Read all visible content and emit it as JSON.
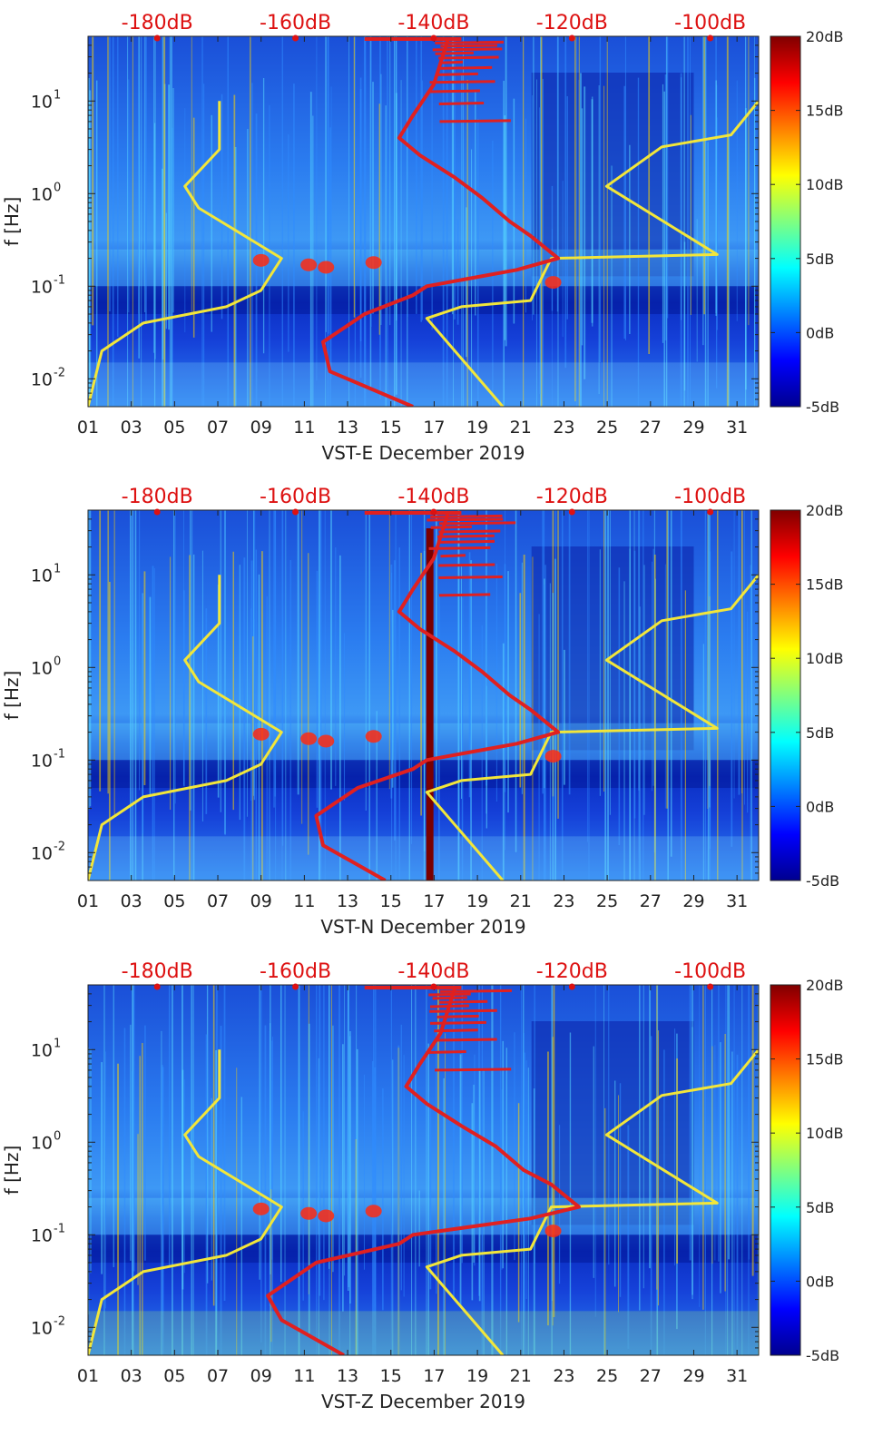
{
  "figure": {
    "description_free": true
  },
  "colors": {
    "spectrogram_low": "#00008f",
    "spectrogram_mid": "#1f7fff",
    "nlnm_nhnm_curve": "#f2e63a",
    "psd_curve": "#e02020",
    "top_axis_text": "#dd1111",
    "event_bar": "#7a0000"
  },
  "chart_data": [
    {
      "type": "heatmap",
      "panel": "VST-E",
      "xlabel": "VST-E December 2019",
      "ylabel": "f [Hz]",
      "x_ticks": [
        "01",
        "03",
        "05",
        "07",
        "09",
        "11",
        "13",
        "15",
        "17",
        "19",
        "21",
        "23",
        "25",
        "27",
        "29",
        "31"
      ],
      "x_range_days": [
        1,
        32
      ],
      "y_scale": "log",
      "y_range_hz": [
        0.005,
        50
      ],
      "y_ticks": [
        {
          "value": 0.01,
          "base": "10",
          "exp": "-2"
        },
        {
          "value": 0.1,
          "base": "10",
          "exp": "-1"
        },
        {
          "value": 1,
          "base": "10",
          "exp": "0"
        },
        {
          "value": 10,
          "base": "10",
          "exp": "1"
        }
      ],
      "top_axis_ticks": [
        "-180dB",
        "-160dB",
        "-140dB",
        "-120dB",
        "-100dB"
      ],
      "top_axis_range_db": [
        -190,
        -93
      ],
      "colorbar_ticks": [
        "20dB",
        "15dB",
        "10dB",
        "5dB",
        "0dB",
        "-5dB"
      ],
      "colorbar_range_db": [
        -5,
        20
      ],
      "event_bar_day": null,
      "curves": [
        {
          "name": "noise-model-low",
          "color": "yellow",
          "points": [
            [
              -190,
              0.005
            ],
            [
              -189,
              0.01
            ],
            [
              -188,
              0.02
            ],
            [
              -182,
              0.04
            ],
            [
              -170,
              0.06
            ],
            [
              -165,
              0.09
            ],
            [
              -162,
              0.2
            ],
            [
              -174,
              0.7
            ],
            [
              -176,
              1.2
            ],
            [
              -171,
              3
            ],
            [
              -171,
              10
            ]
          ]
        },
        {
          "name": "noise-model-high",
          "color": "yellow",
          "points": [
            [
              -130,
              0.005
            ],
            [
              -141,
              0.045
            ],
            [
              -136,
              0.06
            ],
            [
              -126,
              0.07
            ],
            [
              -123,
              0.2
            ],
            [
              -99,
              0.22
            ],
            [
              -115,
              1.2
            ],
            [
              -107,
              3.2
            ],
            [
              -97,
              4.3
            ],
            [
              -93,
              10
            ]
          ]
        },
        {
          "name": "median-psd",
          "color": "red",
          "points": [
            [
              -143,
              0.005
            ],
            [
              -155,
              0.012
            ],
            [
              -156,
              0.025
            ],
            [
              -150,
              0.05
            ],
            [
              -143,
              0.08
            ],
            [
              -141,
              0.1
            ],
            [
              -128,
              0.15
            ],
            [
              -122,
              0.2
            ],
            [
              -126,
              0.35
            ],
            [
              -129,
              0.5
            ],
            [
              -133,
              0.9
            ],
            [
              -137,
              1.5
            ],
            [
              -142,
              2.6
            ],
            [
              -145,
              4
            ],
            [
              -143,
              7
            ],
            [
              -140,
              15
            ],
            [
              -138,
              45
            ]
          ]
        }
      ]
    },
    {
      "type": "heatmap",
      "panel": "VST-N",
      "xlabel": "VST-N December 2019",
      "ylabel": "f [Hz]",
      "x_ticks": [
        "01",
        "03",
        "05",
        "07",
        "09",
        "11",
        "13",
        "15",
        "17",
        "19",
        "21",
        "23",
        "25",
        "27",
        "29",
        "31"
      ],
      "x_range_days": [
        1,
        32
      ],
      "y_scale": "log",
      "y_range_hz": [
        0.005,
        50
      ],
      "y_ticks": [
        {
          "value": 0.01,
          "base": "10",
          "exp": "-2"
        },
        {
          "value": 0.1,
          "base": "10",
          "exp": "-1"
        },
        {
          "value": 1,
          "base": "10",
          "exp": "0"
        },
        {
          "value": 10,
          "base": "10",
          "exp": "1"
        }
      ],
      "top_axis_ticks": [
        "-180dB",
        "-160dB",
        "-140dB",
        "-120dB",
        "-100dB"
      ],
      "top_axis_range_db": [
        -190,
        -93
      ],
      "colorbar_ticks": [
        "20dB",
        "15dB",
        "10dB",
        "5dB",
        "0dB",
        "-5dB"
      ],
      "colorbar_range_db": [
        -5,
        20
      ],
      "event_bar_day": 16.8,
      "curves": [
        {
          "name": "noise-model-low",
          "color": "yellow",
          "points": [
            [
              -190,
              0.005
            ],
            [
              -189,
              0.01
            ],
            [
              -188,
              0.02
            ],
            [
              -182,
              0.04
            ],
            [
              -170,
              0.06
            ],
            [
              -165,
              0.09
            ],
            [
              -162,
              0.2
            ],
            [
              -174,
              0.7
            ],
            [
              -176,
              1.2
            ],
            [
              -171,
              3
            ],
            [
              -171,
              10
            ]
          ]
        },
        {
          "name": "noise-model-high",
          "color": "yellow",
          "points": [
            [
              -130,
              0.005
            ],
            [
              -141,
              0.045
            ],
            [
              -136,
              0.06
            ],
            [
              -126,
              0.07
            ],
            [
              -123,
              0.2
            ],
            [
              -99,
              0.22
            ],
            [
              -115,
              1.2
            ],
            [
              -107,
              3.2
            ],
            [
              -97,
              4.3
            ],
            [
              -93,
              10
            ]
          ]
        },
        {
          "name": "median-psd",
          "color": "red",
          "points": [
            [
              -147,
              0.005
            ],
            [
              -156,
              0.012
            ],
            [
              -157,
              0.025
            ],
            [
              -151,
              0.05
            ],
            [
              -143,
              0.08
            ],
            [
              -141,
              0.1
            ],
            [
              -128,
              0.15
            ],
            [
              -122,
              0.2
            ],
            [
              -126,
              0.35
            ],
            [
              -129,
              0.5
            ],
            [
              -133,
              0.9
            ],
            [
              -137,
              1.5
            ],
            [
              -142,
              2.6
            ],
            [
              -145,
              4
            ],
            [
              -143,
              7
            ],
            [
              -140,
              15
            ],
            [
              -138,
              45
            ]
          ]
        }
      ]
    },
    {
      "type": "heatmap",
      "panel": "VST-Z",
      "xlabel": "VST-Z December 2019",
      "ylabel": "f [Hz]",
      "x_ticks": [
        "01",
        "03",
        "05",
        "07",
        "09",
        "11",
        "13",
        "15",
        "17",
        "19",
        "21",
        "23",
        "25",
        "27",
        "29",
        "31"
      ],
      "x_range_days": [
        1,
        32
      ],
      "y_scale": "log",
      "y_range_hz": [
        0.005,
        50
      ],
      "y_ticks": [
        {
          "value": 0.01,
          "base": "10",
          "exp": "-2"
        },
        {
          "value": 0.1,
          "base": "10",
          "exp": "-1"
        },
        {
          "value": 1,
          "base": "10",
          "exp": "0"
        },
        {
          "value": 10,
          "base": "10",
          "exp": "1"
        }
      ],
      "top_axis_ticks": [
        "-180dB",
        "-160dB",
        "-140dB",
        "-120dB",
        "-100dB"
      ],
      "top_axis_range_db": [
        -190,
        -93
      ],
      "colorbar_ticks": [
        "20dB",
        "15dB",
        "10dB",
        "5dB",
        "0dB",
        "-5dB"
      ],
      "colorbar_range_db": [
        -5,
        20
      ],
      "event_bar_day": null,
      "curves": [
        {
          "name": "noise-model-low",
          "color": "yellow",
          "points": [
            [
              -190,
              0.005
            ],
            [
              -189,
              0.01
            ],
            [
              -188,
              0.02
            ],
            [
              -182,
              0.04
            ],
            [
              -170,
              0.06
            ],
            [
              -165,
              0.09
            ],
            [
              -162,
              0.2
            ],
            [
              -174,
              0.7
            ],
            [
              -176,
              1.2
            ],
            [
              -171,
              3
            ],
            [
              -171,
              10
            ]
          ]
        },
        {
          "name": "noise-model-high",
          "color": "yellow",
          "points": [
            [
              -130,
              0.005
            ],
            [
              -141,
              0.045
            ],
            [
              -136,
              0.06
            ],
            [
              -126,
              0.07
            ],
            [
              -123,
              0.2
            ],
            [
              -99,
              0.22
            ],
            [
              -115,
              1.2
            ],
            [
              -107,
              3.2
            ],
            [
              -97,
              4.3
            ],
            [
              -93,
              10
            ]
          ]
        },
        {
          "name": "median-psd",
          "color": "red",
          "points": [
            [
              -153,
              0.005
            ],
            [
              -162,
              0.012
            ],
            [
              -164,
              0.022
            ],
            [
              -157,
              0.05
            ],
            [
              -145,
              0.08
            ],
            [
              -143,
              0.1
            ],
            [
              -126,
              0.15
            ],
            [
              -119,
              0.2
            ],
            [
              -123,
              0.35
            ],
            [
              -127,
              0.5
            ],
            [
              -131,
              0.9
            ],
            [
              -136,
              1.5
            ],
            [
              -141,
              2.6
            ],
            [
              -144,
              4
            ],
            [
              -142,
              7
            ],
            [
              -139,
              15
            ],
            [
              -137,
              45
            ]
          ]
        }
      ]
    }
  ]
}
